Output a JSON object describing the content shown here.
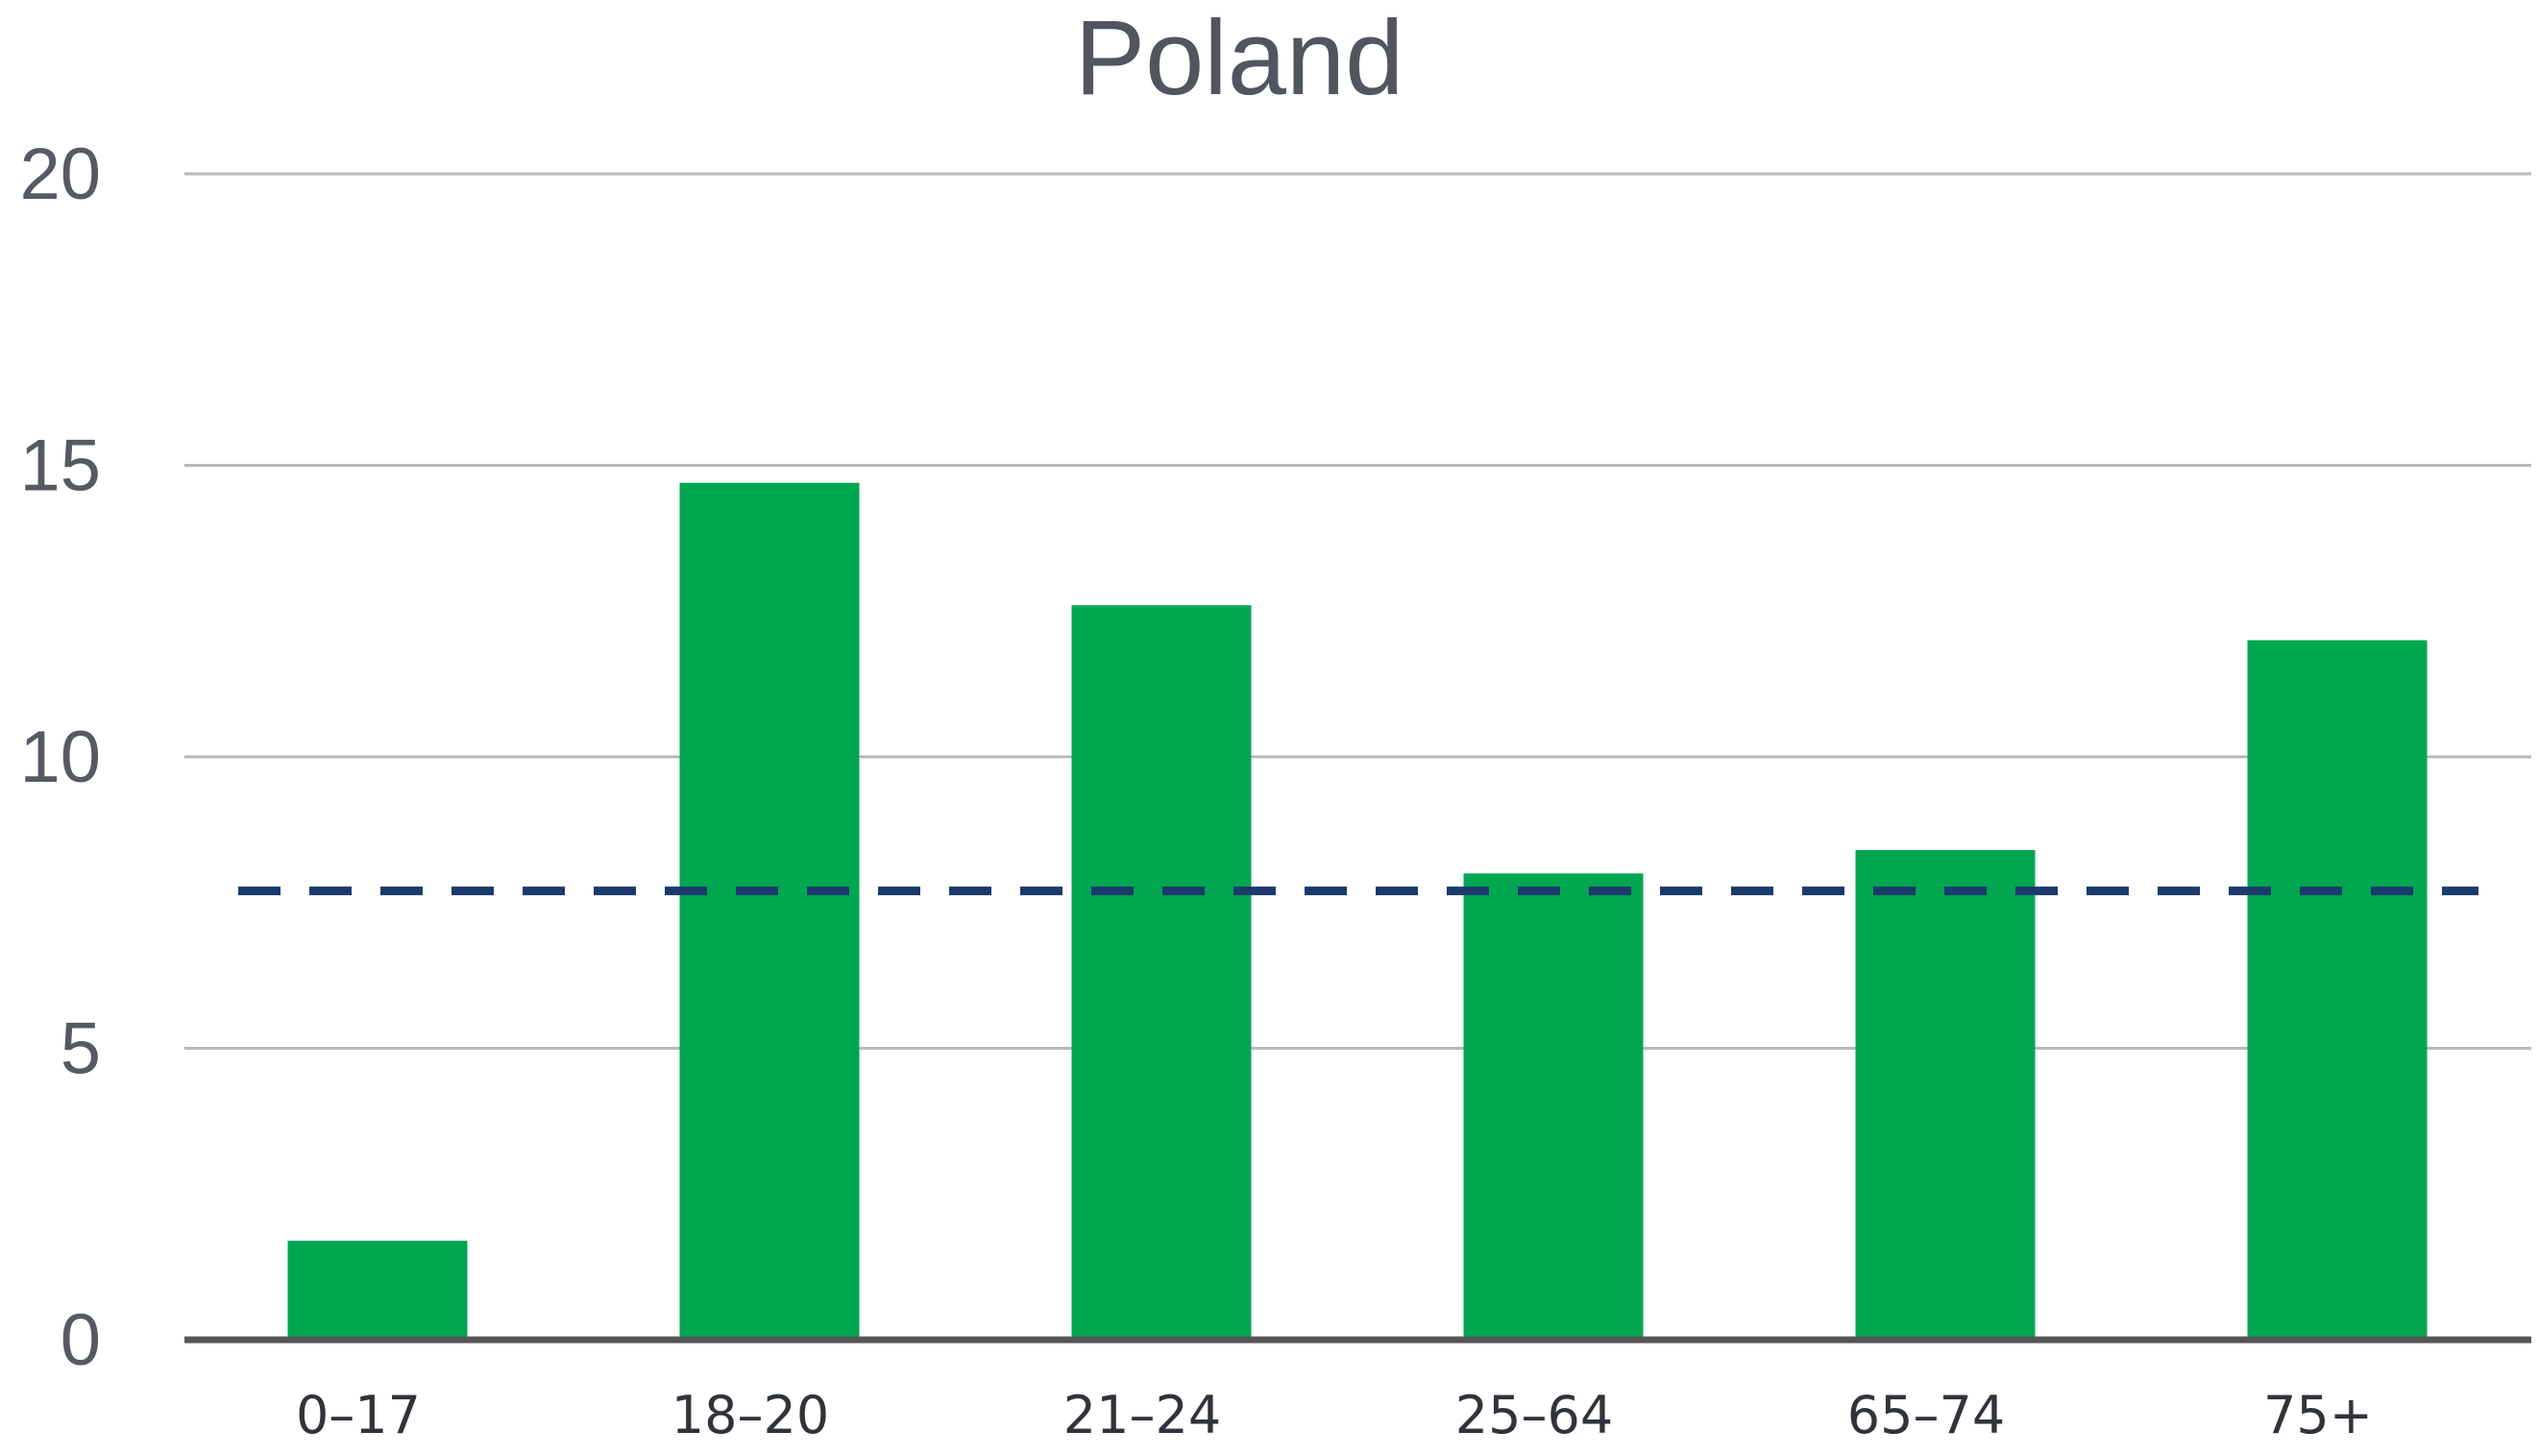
{
  "chart_data": {
    "type": "bar",
    "title": "Poland",
    "xlabel": "",
    "ylabel": "",
    "categories": [
      "0–17",
      "18–20",
      "21–24",
      "25–64",
      "65–74",
      "75+"
    ],
    "series": [
      {
        "values": [
          1.7,
          14.7,
          12.6,
          8.0,
          8.4,
          12.0
        ]
      }
    ],
    "reference_line": {
      "value": 7.7,
      "style": "dashed"
    },
    "ylim": [
      0,
      20
    ],
    "yticks": [
      "0",
      "5",
      "10",
      "15",
      "20"
    ],
    "grid": true,
    "legend": "none",
    "colors": {
      "bar": "#00a650",
      "reference_line": "#1b3a6b",
      "grid": "#b8b8b8",
      "axis": "#555555"
    }
  }
}
